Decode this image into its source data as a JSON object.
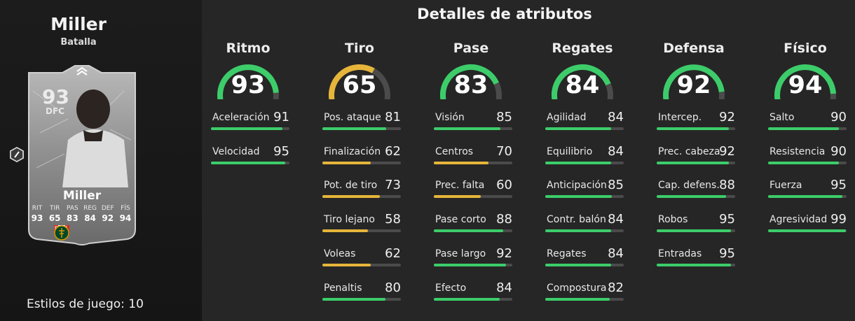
{
  "player": {
    "name": "Miller",
    "version": "Batalla",
    "rating": "93",
    "position": "DFC",
    "card_name": "Miller",
    "card_stats": [
      {
        "label": "RIT",
        "value": "93"
      },
      {
        "label": "TIR",
        "value": "65"
      },
      {
        "label": "PAS",
        "value": "83"
      },
      {
        "label": "REG",
        "value": "84"
      },
      {
        "label": "DEF",
        "value": "92"
      },
      {
        "label": "FÍS",
        "value": "94"
      }
    ],
    "playstyles_text": "Estilos de juego: 10",
    "nation_icon": "canada-flag-icon",
    "league_icon": "mls-logo-icon",
    "club_icon": "portland-timbers-logo-icon"
  },
  "title": "Detalles de atributos",
  "colors": {
    "green": "#3ccd6a",
    "yellow": "#e6b53a",
    "track": "#4b4b4b"
  },
  "categories": [
    {
      "name": "Ritmo",
      "value": 93,
      "stats": [
        {
          "name": "Aceleración",
          "value": 91
        },
        {
          "name": "Velocidad",
          "value": 95
        }
      ]
    },
    {
      "name": "Tiro",
      "value": 65,
      "stats": [
        {
          "name": "Pos. ataque",
          "value": 81
        },
        {
          "name": "Finalización",
          "value": 62
        },
        {
          "name": "Pot. de tiro",
          "value": 73
        },
        {
          "name": "Tiro lejano",
          "value": 58
        },
        {
          "name": "Voleas",
          "value": 62
        },
        {
          "name": "Penaltis",
          "value": 80
        }
      ]
    },
    {
      "name": "Pase",
      "value": 83,
      "stats": [
        {
          "name": "Visión",
          "value": 85
        },
        {
          "name": "Centros",
          "value": 70
        },
        {
          "name": "Prec. falta",
          "value": 60
        },
        {
          "name": "Pase corto",
          "value": 88
        },
        {
          "name": "Pase largo",
          "value": 92
        },
        {
          "name": "Efecto",
          "value": 84
        }
      ]
    },
    {
      "name": "Regates",
      "value": 84,
      "stats": [
        {
          "name": "Agilidad",
          "value": 84
        },
        {
          "name": "Equilibrio",
          "value": 84
        },
        {
          "name": "Anticipación",
          "value": 85
        },
        {
          "name": "Contr. balón",
          "value": 84
        },
        {
          "name": "Regates",
          "value": 84
        },
        {
          "name": "Compostura",
          "value": 82
        }
      ]
    },
    {
      "name": "Defensa",
      "value": 92,
      "stats": [
        {
          "name": "Intercep.",
          "value": 92
        },
        {
          "name": "Prec. cabeza",
          "value": 92
        },
        {
          "name": "Cap. defens.",
          "value": 88
        },
        {
          "name": "Robos",
          "value": 95
        },
        {
          "name": "Entradas",
          "value": 95
        }
      ]
    },
    {
      "name": "Físico",
      "value": 94,
      "stats": [
        {
          "name": "Salto",
          "value": 90
        },
        {
          "name": "Resistencia",
          "value": 90
        },
        {
          "name": "Fuerza",
          "value": 95
        },
        {
          "name": "Agresividad",
          "value": 99
        }
      ]
    }
  ]
}
